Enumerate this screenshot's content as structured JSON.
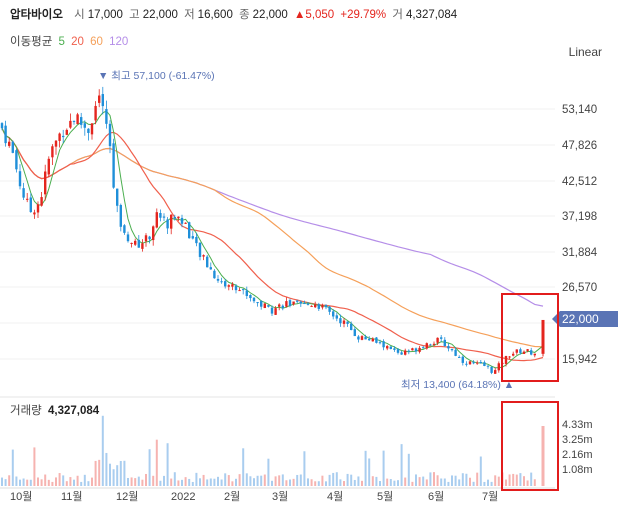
{
  "header": {
    "name": "압타바이오",
    "open_label": "시",
    "open": "17,000",
    "high_label": "고",
    "high": "22,000",
    "low_label": "저",
    "low": "16,600",
    "close_label": "종",
    "close": "22,000",
    "change": "▲5,050",
    "change_pct": "+29.79%",
    "volume_label": "거",
    "volume": "4,327,084"
  },
  "ma": {
    "label": "이동평균",
    "periods": [
      "5",
      "20",
      "60",
      "120"
    ],
    "colors": [
      "#4caf50",
      "#f0604d",
      "#f5a05a",
      "#b58ee8"
    ]
  },
  "scale_label": "Linear",
  "colors": {
    "up": "#e4251e",
    "down": "#1f8fd9",
    "highlight": "#e21c1c",
    "tag": "#5a74b5"
  },
  "price_axis": {
    "ticks": [
      "53,140",
      "47,826",
      "42,512",
      "37,198",
      "31,884",
      "26,570",
      "15,942"
    ]
  },
  "current_price": "22,000",
  "annotations": {
    "high": "▼ 최고 57,100 (-61.47%)",
    "low": "최저 13,400 (64.18%) ▲"
  },
  "volume_panel": {
    "label": "거래량",
    "value": "4,327,084",
    "ticks": [
      "4.33m",
      "3.25m",
      "2.16m",
      "1.08m"
    ]
  },
  "x_axis": {
    "ticks": [
      "10월",
      "11월",
      "12월",
      "2022",
      "2월",
      "3월",
      "4월",
      "5월",
      "6월",
      "7월"
    ]
  },
  "chart_data": {
    "type": "candlestick",
    "series_name": "압타바이오",
    "y_range": [
      13400,
      57100
    ],
    "key_points": [
      {
        "date": "2021-09",
        "close": 51000
      },
      {
        "date": "2021-10",
        "close": 40000
      },
      {
        "date": "2021-11",
        "close": 48000
      },
      {
        "date": "2021-11-23",
        "high": 57100
      },
      {
        "date": "2021-12",
        "close": 36000
      },
      {
        "date": "2022-01",
        "close": 33000
      },
      {
        "date": "2022-02",
        "close": 28000
      },
      {
        "date": "2022-03",
        "close": 24500
      },
      {
        "date": "2022-04",
        "close": 23000
      },
      {
        "date": "2022-05",
        "close": 19000
      },
      {
        "date": "2022-06",
        "close": 18000
      },
      {
        "date": "2022-07-01",
        "low": 13400
      },
      {
        "date": "2022-07-22",
        "open": 17000,
        "high": 22000,
        "low": 16600,
        "close": 22000
      }
    ],
    "latest": {
      "open": 17000,
      "high": 22000,
      "low": 16600,
      "close": 22000,
      "change": 5050,
      "change_pct": 29.79,
      "volume": 4327084
    },
    "moving_averages": [
      "5",
      "20",
      "60",
      "120"
    ]
  }
}
